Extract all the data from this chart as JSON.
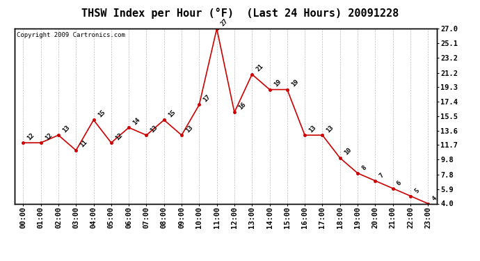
{
  "title": "THSW Index per Hour (°F)  (Last 24 Hours) 20091228",
  "copyright": "Copyright 2009 Cartronics.com",
  "hours": [
    0,
    1,
    2,
    3,
    4,
    5,
    6,
    7,
    8,
    9,
    10,
    11,
    12,
    13,
    14,
    15,
    16,
    17,
    18,
    19,
    20,
    21,
    22,
    23
  ],
  "hour_labels": [
    "00:00",
    "01:00",
    "02:00",
    "03:00",
    "04:00",
    "05:00",
    "06:00",
    "07:00",
    "08:00",
    "09:00",
    "10:00",
    "11:00",
    "12:00",
    "13:00",
    "14:00",
    "15:00",
    "16:00",
    "17:00",
    "18:00",
    "19:00",
    "20:00",
    "21:00",
    "22:00",
    "23:00"
  ],
  "values": [
    12,
    12,
    13,
    11,
    15,
    12,
    14,
    13,
    15,
    13,
    17,
    27,
    16,
    21,
    19,
    19,
    13,
    13,
    10,
    8,
    7,
    6,
    5,
    4
  ],
  "point_labels": [
    "12",
    "12",
    "13",
    "11",
    "15",
    "12",
    "14",
    "13",
    "15",
    "13",
    "17",
    "27",
    "16",
    "21",
    "19",
    "19",
    "13",
    "13",
    "10",
    "8",
    "7",
    "6",
    "5",
    "4"
  ],
  "line_color": "#cc0000",
  "marker_color": "#cc0000",
  "bg_color": "#ffffff",
  "grid_color": "#bbbbbb",
  "ylim": [
    4.0,
    27.0
  ],
  "yticks_right": [
    4.0,
    5.9,
    7.8,
    9.8,
    11.7,
    13.6,
    15.5,
    17.4,
    19.3,
    21.2,
    23.2,
    25.1,
    27.0
  ],
  "title_fontsize": 11,
  "label_fontsize": 6.5,
  "tick_fontsize": 7.5,
  "copyright_fontsize": 6.5
}
